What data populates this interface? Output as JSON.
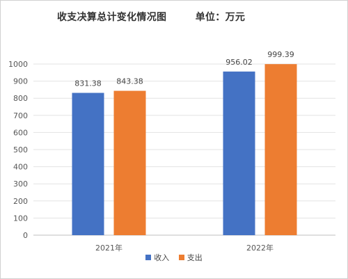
{
  "chart_data": {
    "type": "bar",
    "title": "收支决算总计变化情况图        单位：万元",
    "categories": [
      "2021年",
      "2022年"
    ],
    "series": [
      {
        "name": "收入",
        "values": [
          831.38,
          956.02
        ],
        "labels": [
          "831.38",
          "956.02"
        ],
        "color": "#4472C4"
      },
      {
        "name": "支出",
        "values": [
          843.38,
          999.39
        ],
        "labels": [
          "843.38",
          "999.39"
        ],
        "color": "#ED7D31"
      }
    ],
    "ylim": [
      0,
      1000
    ],
    "yticks": [
      0,
      100,
      200,
      300,
      400,
      500,
      600,
      700,
      800,
      900,
      1000
    ],
    "grid": true,
    "legend": "bottom",
    "xlabel": "",
    "ylabel": ""
  }
}
